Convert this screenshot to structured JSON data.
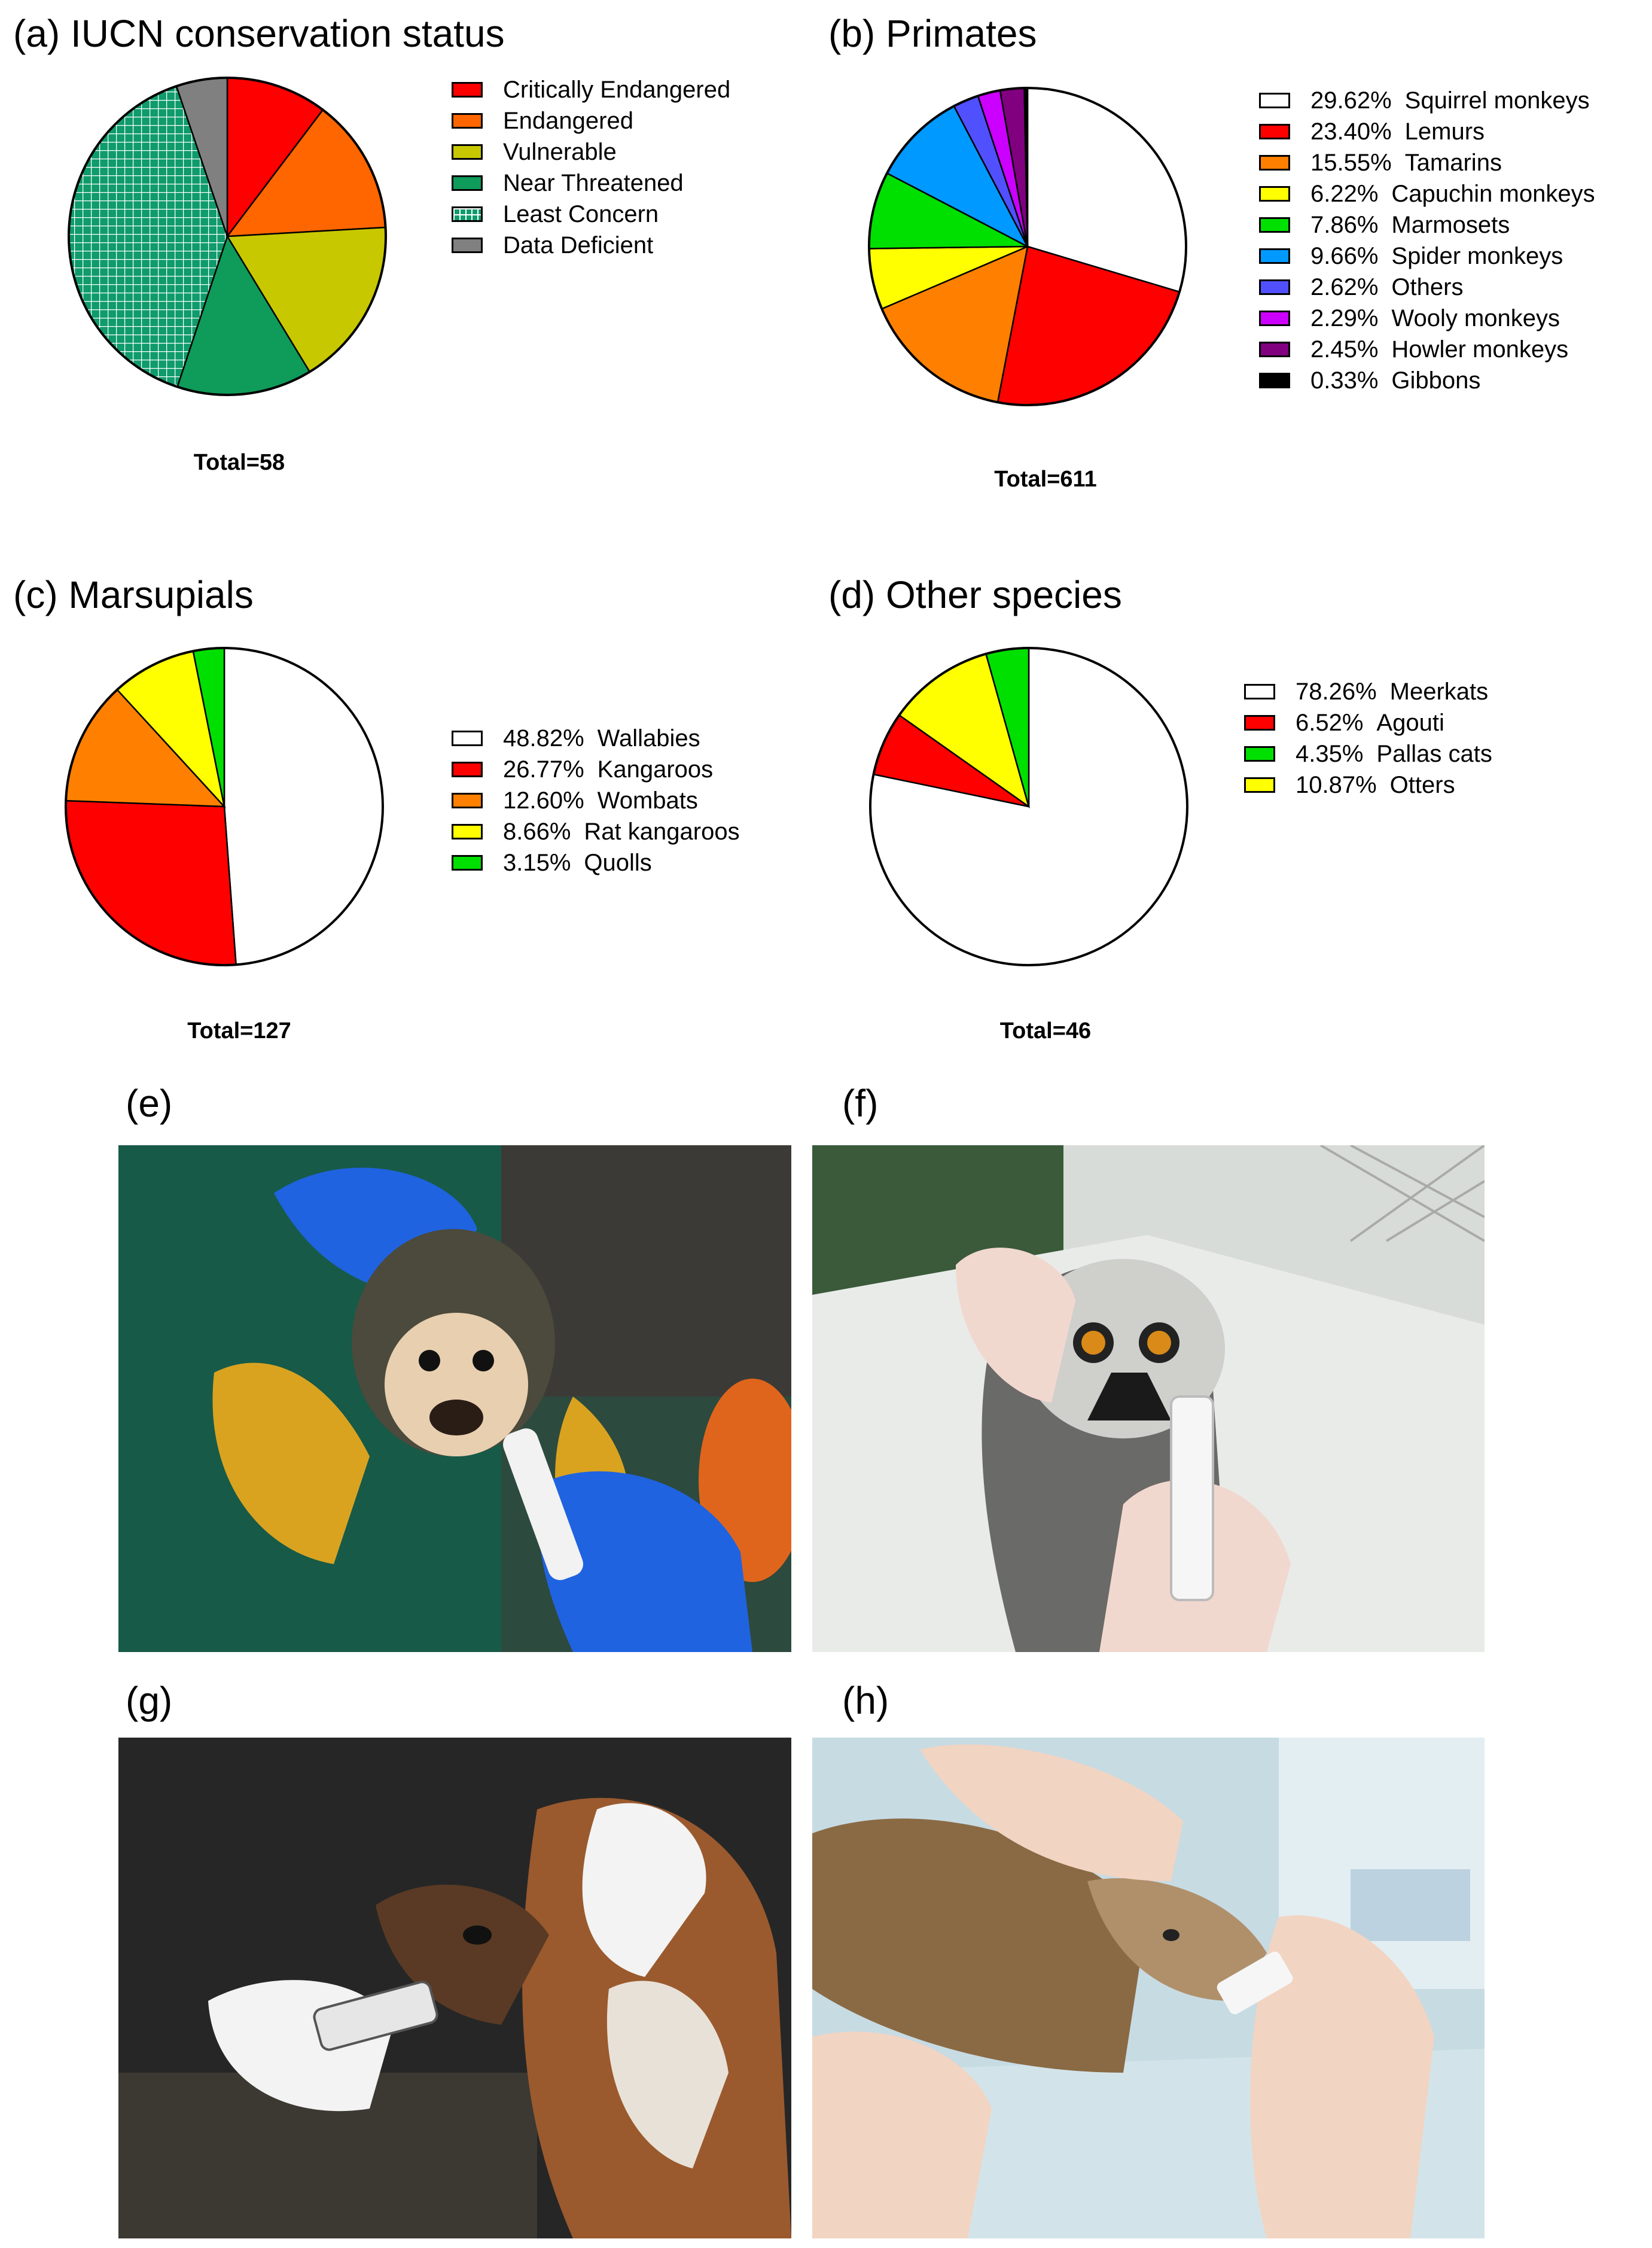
{
  "chart_data": [
    {
      "type": "pie",
      "panel": "(a)",
      "title": "(a) IUCN conservation status",
      "total_label": "Total=58",
      "legend_position": "right",
      "slices": [
        {
          "name": "Critically Endangered",
          "value": 10.3,
          "color": "#ff0000"
        },
        {
          "name": "Endangered",
          "value": 13.8,
          "color": "#ff6600"
        },
        {
          "name": "Vulnerable",
          "value": 17.2,
          "color": "#c8c800"
        },
        {
          "name": "Near Threatened",
          "value": 13.8,
          "color": "#0f9b5a"
        },
        {
          "name": "Least Concern",
          "value": 39.7,
          "color": "#0f9b6b",
          "pattern": "grid"
        },
        {
          "name": "Data Deficient",
          "value": 5.2,
          "color": "#808080"
        }
      ]
    },
    {
      "type": "pie",
      "panel": "(b)",
      "title": "(b) Primates",
      "total_label": "Total=611",
      "legend_position": "right",
      "slices": [
        {
          "name": "Squirrel monkeys",
          "pct_label": "29.62%",
          "value": 29.62,
          "color": "#ffffff"
        },
        {
          "name": "Lemurs",
          "pct_label": "23.40%",
          "value": 23.4,
          "color": "#ff0000"
        },
        {
          "name": "Tamarins",
          "pct_label": "15.55%",
          "value": 15.55,
          "color": "#ff8000"
        },
        {
          "name": "Capuchin monkeys",
          "pct_label": "6.22%",
          "value": 6.22,
          "color": "#ffff00"
        },
        {
          "name": "Marmosets",
          "pct_label": "7.86%",
          "value": 7.86,
          "color": "#00e000"
        },
        {
          "name": "Spider monkeys",
          "pct_label": "9.66%",
          "value": 9.66,
          "color": "#0099ff"
        },
        {
          "name": "Others",
          "pct_label": "2.62%",
          "value": 2.62,
          "color": "#5050ff"
        },
        {
          "name": "Wooly monkeys",
          "pct_label": "2.29%",
          "value": 2.29,
          "color": "#cc00ff"
        },
        {
          "name": "Howler monkeys",
          "pct_label": "2.45%",
          "value": 2.45,
          "color": "#800080"
        },
        {
          "name": "Gibbons",
          "pct_label": "0.33%",
          "value": 0.33,
          "color": "#000000"
        }
      ]
    },
    {
      "type": "pie",
      "panel": "(c)",
      "title": "(c) Marsupials",
      "total_label": "Total=127",
      "legend_position": "right",
      "slices": [
        {
          "name": "Wallabies",
          "pct_label": "48.82%",
          "value": 48.82,
          "color": "#ffffff"
        },
        {
          "name": "Kangaroos",
          "pct_label": "26.77%",
          "value": 26.77,
          "color": "#ff0000"
        },
        {
          "name": "Wombats",
          "pct_label": "12.60%",
          "value": 12.6,
          "color": "#ff8000"
        },
        {
          "name": "Rat kangaroos",
          "pct_label": "8.66%",
          "value": 8.66,
          "color": "#ffff00"
        },
        {
          "name": "Quolls",
          "pct_label": "3.15%",
          "value": 3.15,
          "color": "#00e000"
        }
      ]
    },
    {
      "type": "pie",
      "panel": "(d)",
      "title": "(d) Other species",
      "total_label": "Total=46",
      "legend_position": "right",
      "slices": [
        {
          "name": "Meerkats",
          "pct_label": "78.26%",
          "value": 78.26,
          "color": "#ffffff"
        },
        {
          "name": "Agouti",
          "pct_label": "6.52%",
          "value": 6.52,
          "color": "#ff0000"
        },
        {
          "name": "Otters",
          "pct_label": "10.87%",
          "value": 10.87,
          "color": "#ffff00"
        },
        {
          "name": "Pallas cats",
          "pct_label": "4.35%",
          "value": 4.35,
          "color": "#00e000"
        }
      ],
      "legend_order": [
        "Meerkats",
        "Agouti",
        "Pallas cats",
        "Otters"
      ]
    }
  ],
  "photos": [
    {
      "label": "(e)"
    },
    {
      "label": "(f)"
    },
    {
      "label": "(g)"
    },
    {
      "label": "(h)"
    }
  ]
}
